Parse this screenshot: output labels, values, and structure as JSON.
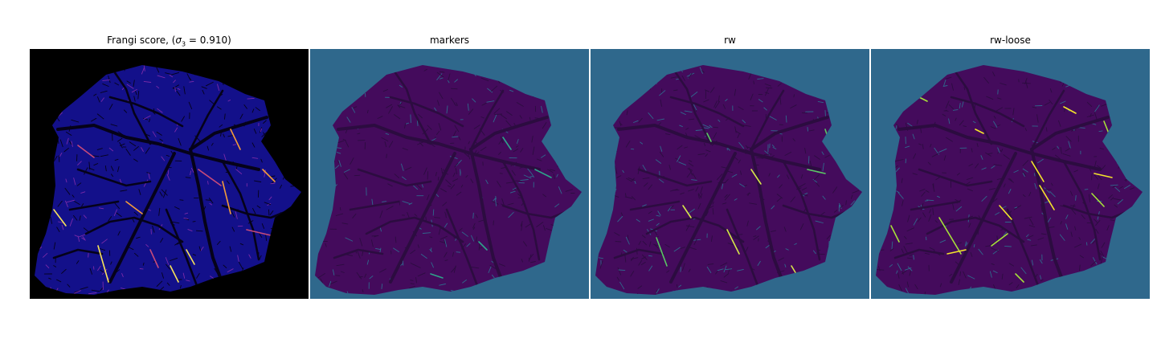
{
  "panels": [
    {
      "title_pre": "Frangi score, (",
      "title_sym": "σ",
      "title_sub": "3",
      "title_post": " = 0.910)",
      "colormap": "plasma",
      "background": "#000000",
      "tissue_color": "#13108a",
      "dark_color": "#050219",
      "accent_colors": [
        "#7b2aa8",
        "#c64a7a",
        "#f39b3a",
        "#f8e35a"
      ]
    },
    {
      "title": "markers",
      "colormap": "viridis",
      "background": "#2f688c",
      "tissue_color": "#440b5c",
      "dark_color": "#2c0c40",
      "accent_colors": [
        "#2f688c",
        "#2ea28a"
      ]
    },
    {
      "title": "rw",
      "colormap": "viridis",
      "background": "#2f688c",
      "tissue_color": "#440b5c",
      "dark_color": "#2c0c40",
      "accent_colors": [
        "#2f688c",
        "#5ac864",
        "#d6e64a"
      ]
    },
    {
      "title": "rw-loose",
      "colormap": "viridis",
      "background": "#2f688c",
      "tissue_color": "#440b5c",
      "dark_color": "#2c0c40",
      "accent_colors": [
        "#2f688c",
        "#a6e03a",
        "#f4e52a"
      ]
    }
  ]
}
